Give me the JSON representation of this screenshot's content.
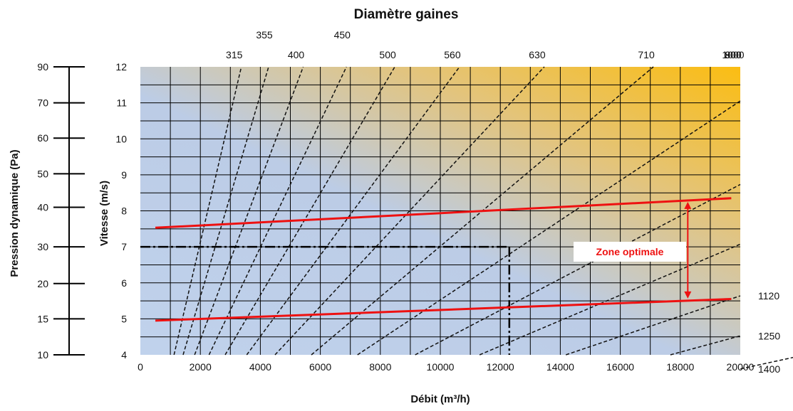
{
  "chart_data": {
    "type": "line",
    "title": "Diamètre gaines",
    "xlabel": "Débit (m³/h)",
    "ylabel": "Vitesse (m/s)",
    "y2label": "Pression dynamique (Pa)",
    "xlim": [
      0,
      20000
    ],
    "ylim": [
      4,
      12
    ],
    "grid": true,
    "x_ticks": [
      "0",
      "2000",
      "4000",
      "6000",
      "8000",
      "10000",
      "12000",
      "14000",
      "16000",
      "18000",
      "20000"
    ],
    "y_ticks": [
      "4",
      "5",
      "6",
      "7",
      "8",
      "9",
      "10",
      "11",
      "12"
    ],
    "pressure_ticks": [
      {
        "label": "10",
        "velocity": 4.0
      },
      {
        "label": "15",
        "velocity": 5.0
      },
      {
        "label": "20",
        "velocity": 5.98
      },
      {
        "label": "30",
        "velocity": 7.0
      },
      {
        "label": "40",
        "velocity": 8.1
      },
      {
        "label": "50",
        "velocity": 9.03
      },
      {
        "label": "60",
        "velocity": 10.02
      },
      {
        "label": "70",
        "velocity": 11.0
      },
      {
        "label": "90",
        "velocity": 12.0
      }
    ],
    "diameters_mm": [
      {
        "label": "315",
        "d": 315,
        "label_row": "bottom"
      },
      {
        "label": "355",
        "d": 355,
        "label_row": "top"
      },
      {
        "label": "400",
        "d": 400,
        "label_row": "bottom"
      },
      {
        "label": "450",
        "d": 450,
        "label_row": "top"
      },
      {
        "label": "500",
        "d": 500,
        "label_row": "bottom"
      },
      {
        "label": "560",
        "d": 560,
        "label_row": "bottom"
      },
      {
        "label": "630",
        "d": 630,
        "label_row": "bottom"
      },
      {
        "label": "710",
        "d": 710,
        "label_row": "bottom"
      },
      {
        "label": "800",
        "d": 800,
        "label_row": "bottom"
      },
      {
        "label": "900",
        "d": 900,
        "label_row": "bottom"
      },
      {
        "label": "1000",
        "d": 1000,
        "label_row": "bottom"
      },
      {
        "label": "1120",
        "d": 1120,
        "label_row": "right"
      },
      {
        "label": "1250",
        "d": 1250,
        "label_row": "right"
      },
      {
        "label": "1400",
        "d": 1400,
        "label_row": "right"
      }
    ],
    "optimal_zone": {
      "label": "Zone optimale",
      "upper": {
        "x": [
          500,
          19700
        ],
        "y": [
          7.53,
          8.35
        ]
      },
      "lower": {
        "x": [
          500,
          19700
        ],
        "y": [
          4.95,
          5.55
        ]
      },
      "arrow_x": 18250,
      "color": "#ee1111"
    },
    "example": {
      "flow": 12300,
      "velocity": 7.0
    }
  }
}
